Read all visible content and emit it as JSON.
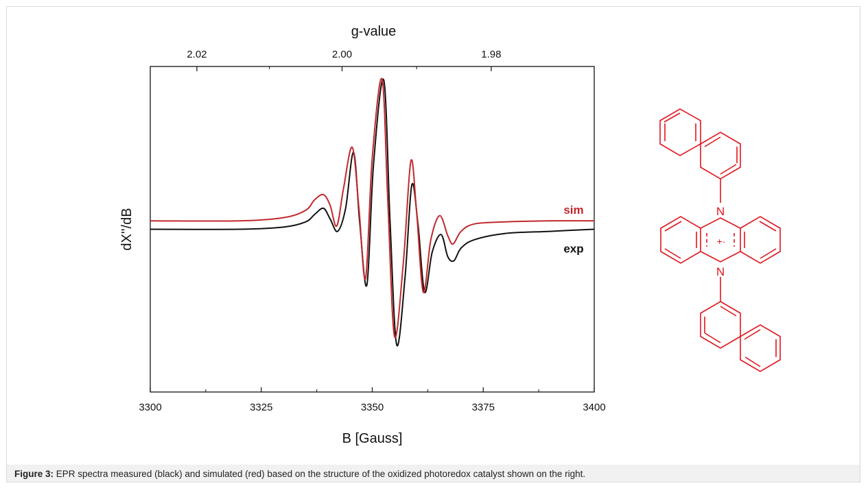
{
  "chart_data": {
    "type": "line",
    "title": "",
    "xlabel": "B [Gauss]",
    "ylabel": "dX''/dB",
    "x2label": "g-value",
    "xlim": [
      3300,
      3400
    ],
    "xticks": [
      "3300",
      "3325",
      "3350",
      "3375",
      "3400"
    ],
    "x2ticks": [
      "2.02",
      "2.00",
      "1.98"
    ],
    "x2tick_positions_B": [
      3310.5,
      3343.2,
      3376.8
    ],
    "ylim": [
      -1.55,
      1.55
    ],
    "y_ticks_labeled": false,
    "grid": false,
    "colors": {
      "exp": "#111111",
      "sim": "#c0282c"
    },
    "series": [
      {
        "name": "sim",
        "offset": 0.08,
        "x": [
          3300,
          3320,
          3330,
          3335,
          3337,
          3339,
          3340.5,
          3342,
          3343.5,
          3345.5,
          3347,
          3348.5,
          3350,
          3352.2,
          3353.5,
          3355,
          3357,
          3358.7,
          3360,
          3361.5,
          3363.2,
          3365.2,
          3367,
          3368.2,
          3370,
          3373,
          3380,
          3390,
          3400
        ],
        "y": [
          0,
          0,
          0.03,
          0.1,
          0.2,
          0.25,
          0.15,
          -0.05,
          0.3,
          0.7,
          0.12,
          -0.55,
          0.6,
          1.35,
          0.2,
          -1.1,
          -0.4,
          0.57,
          0.08,
          -0.68,
          -0.18,
          0.05,
          -0.14,
          -0.22,
          -0.1,
          -0.03,
          -0.01,
          0,
          0
        ]
      },
      {
        "name": "exp",
        "offset": 0,
        "x": [
          3300,
          3320,
          3330,
          3335,
          3337,
          3339,
          3340.5,
          3342.2,
          3344,
          3345.8,
          3347.2,
          3348.8,
          3350.3,
          3352.6,
          3354,
          3355.5,
          3357.4,
          3358.9,
          3360.3,
          3361.8,
          3363.5,
          3365.5,
          3367,
          3368.4,
          3370,
          3373,
          3380,
          3390,
          3400
        ],
        "y": [
          0,
          0,
          0.02,
          0.07,
          0.14,
          0.2,
          0.1,
          -0.02,
          0.2,
          0.73,
          0.05,
          -0.53,
          0.62,
          1.42,
          0.08,
          -1.1,
          -0.45,
          0.42,
          0.05,
          -0.6,
          -0.22,
          -0.05,
          -0.26,
          -0.3,
          -0.18,
          -0.1,
          -0.04,
          -0.02,
          0
        ]
      }
    ]
  },
  "structure": {
    "atom_labels": [
      "N",
      "N"
    ],
    "charge_label": "+·",
    "color": "#e0141c"
  },
  "caption": {
    "label": "Figure 3:",
    "text": " EPR spectra measured (black) and simulated (red) based on the structure of the oxidized photoredox catalyst shown on the right."
  }
}
